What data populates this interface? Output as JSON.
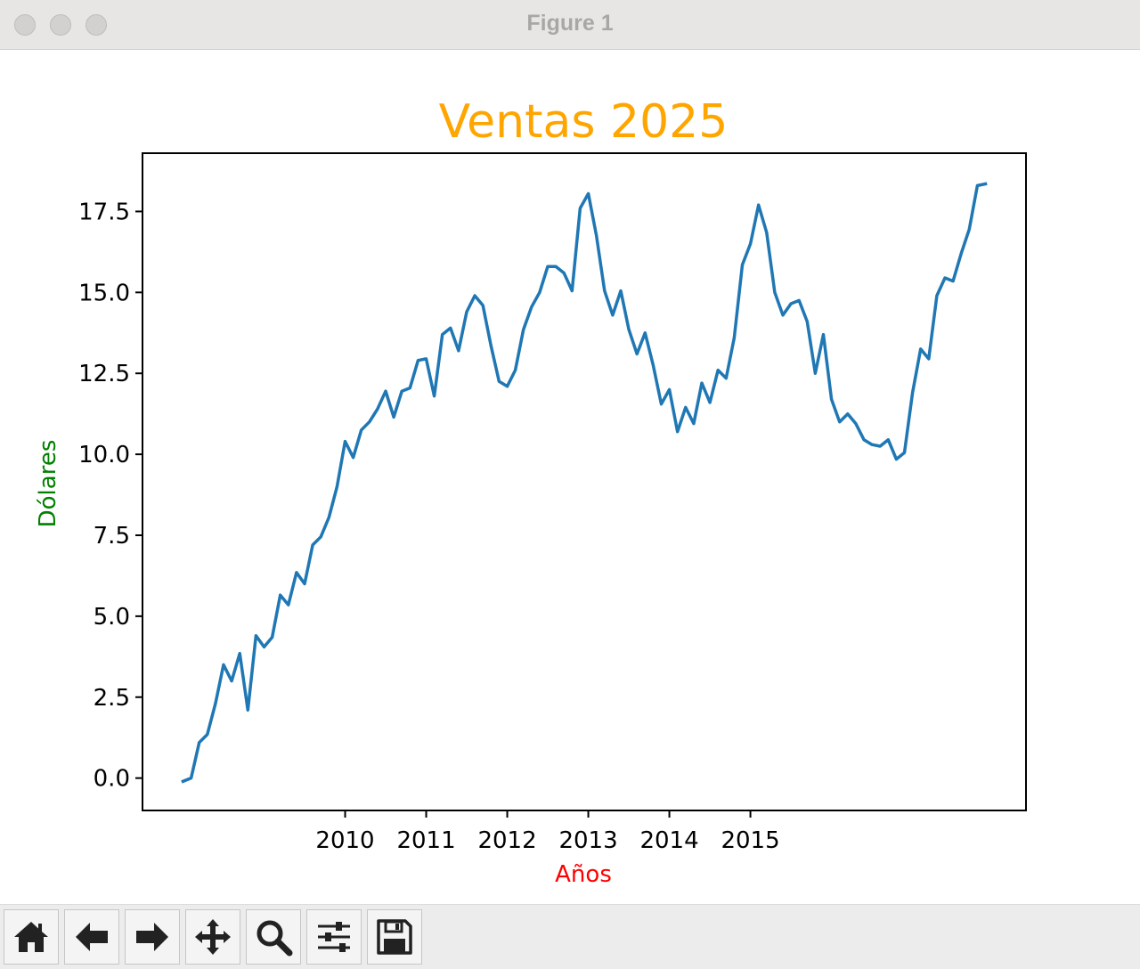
{
  "window": {
    "title": "Figure 1"
  },
  "toolbar": {
    "buttons": [
      {
        "name": "home",
        "icon": "home-icon"
      },
      {
        "name": "back",
        "icon": "arrow-left-icon"
      },
      {
        "name": "forward",
        "icon": "arrow-right-icon"
      },
      {
        "name": "pan",
        "icon": "move-icon"
      },
      {
        "name": "zoom",
        "icon": "magnifier-icon"
      },
      {
        "name": "configure-subplots",
        "icon": "sliders-icon"
      },
      {
        "name": "save",
        "icon": "floppy-disk-icon"
      }
    ]
  },
  "colors": {
    "title": "#ffa500",
    "xlabel": "#ff0000",
    "ylabel": "#008000",
    "line": "#1f77b4"
  },
  "chart_data": {
    "type": "line",
    "title": "Ventas 2025",
    "xlabel": "Años",
    "ylabel": "Dólares",
    "x_tick_labels": [
      "2010",
      "2011",
      "2012",
      "2013",
      "2014",
      "2015"
    ],
    "y_ticks": [
      0.0,
      2.5,
      5.0,
      7.5,
      10.0,
      12.5,
      15.0,
      17.5
    ],
    "y_tick_labels": [
      "0.0",
      "2.5",
      "5.0",
      "7.5",
      "10.0",
      "12.5",
      "15.0",
      "17.5"
    ],
    "ylim": [
      -1.0,
      19.3
    ],
    "xlim": [
      2007.5,
      2018.4
    ],
    "grid": false,
    "legend": false,
    "series": [
      {
        "x": [
          2008.0,
          2008.1,
          2008.2,
          2008.3,
          2008.4,
          2008.5,
          2008.6,
          2008.7,
          2008.8,
          2008.9,
          2009.0,
          2009.1,
          2009.2,
          2009.3,
          2009.4,
          2009.5,
          2009.6,
          2009.7,
          2009.8,
          2009.9,
          2010.0,
          2010.1,
          2010.2,
          2010.3,
          2010.4,
          2010.5,
          2010.6,
          2010.7,
          2010.8,
          2010.9,
          2011.0,
          2011.1,
          2011.2,
          2011.3,
          2011.4,
          2011.5,
          2011.6,
          2011.7,
          2011.8,
          2011.9,
          2012.0,
          2012.1,
          2012.2,
          2012.3,
          2012.4,
          2012.5,
          2012.6,
          2012.7,
          2012.8,
          2012.9,
          2013.0,
          2013.1,
          2013.2,
          2013.3,
          2013.4,
          2013.5,
          2013.6,
          2013.7,
          2013.8,
          2013.9,
          2014.0,
          2014.1,
          2014.2,
          2014.3,
          2014.4,
          2014.5,
          2014.6,
          2014.7,
          2014.8,
          2014.9,
          2015.0,
          2015.1,
          2015.2,
          2015.3,
          2015.4,
          2015.5,
          2015.6,
          2015.7,
          2015.8,
          2015.9,
          2016.0,
          2016.1,
          2016.2,
          2016.3,
          2016.4,
          2016.5,
          2016.6,
          2016.7,
          2016.8,
          2016.9,
          2017.0,
          2017.1,
          2017.2,
          2017.3,
          2017.4,
          2017.5,
          2017.6,
          2017.7,
          2017.8,
          2017.9
        ],
        "y": [
          -0.1,
          0.0,
          1.1,
          1.35,
          2.3,
          3.5,
          3.0,
          3.85,
          2.1,
          4.4,
          4.05,
          4.35,
          5.65,
          5.35,
          6.35,
          6.0,
          7.2,
          7.45,
          8.05,
          9.0,
          10.4,
          9.9,
          10.75,
          11.0,
          11.4,
          11.95,
          11.15,
          11.95,
          12.05,
          12.9,
          12.95,
          11.8,
          13.7,
          13.9,
          13.2,
          14.4,
          14.9,
          14.6,
          13.35,
          12.25,
          12.1,
          12.6,
          13.85,
          14.55,
          15.0,
          15.8,
          15.8,
          15.6,
          15.05,
          17.6,
          18.05,
          16.75,
          15.05,
          14.3,
          15.05,
          13.85,
          13.1,
          13.75,
          12.75,
          11.55,
          12.0,
          10.7,
          11.45,
          10.95,
          12.2,
          11.6,
          12.6,
          12.35,
          13.6,
          15.85,
          16.5,
          17.7,
          16.85,
          15.0,
          14.3,
          14.65,
          14.75,
          14.1,
          12.5,
          13.7,
          11.7,
          11.0,
          11.25,
          10.95,
          10.45,
          10.3,
          10.25,
          10.45,
          9.85,
          10.05,
          11.9,
          13.25,
          12.95,
          14.9,
          15.45,
          15.35,
          16.2,
          16.95,
          18.3,
          18.35
        ]
      }
    ]
  }
}
